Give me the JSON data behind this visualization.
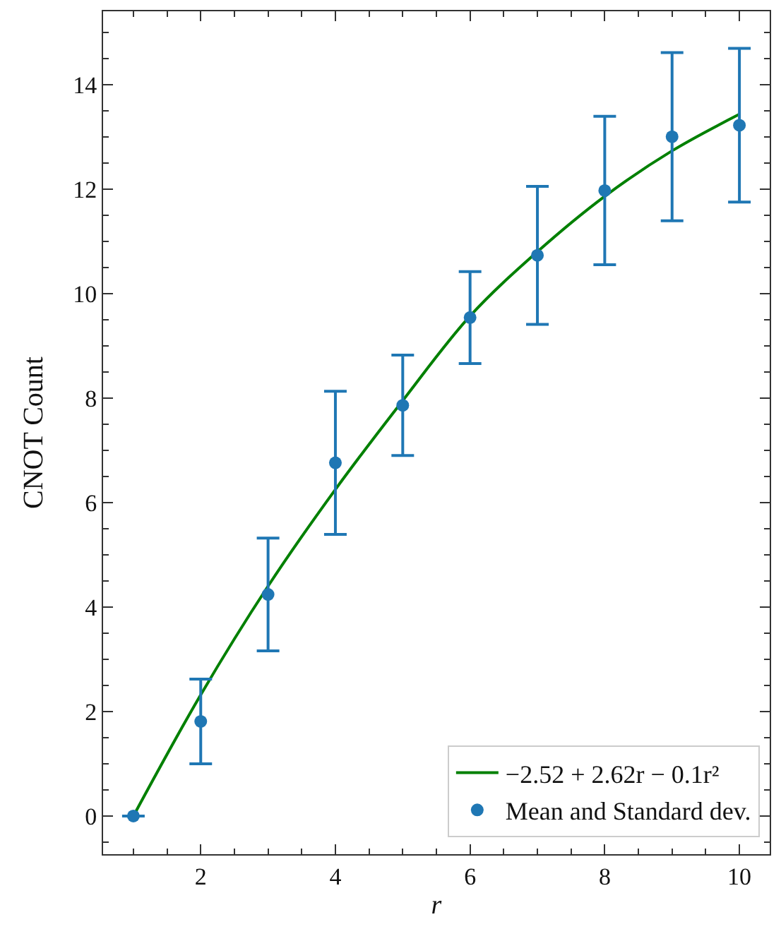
{
  "chart_data": {
    "type": "scatter",
    "xlabel": "r",
    "ylabel": "CNOT Count",
    "xlim": [
      0.55,
      10.45
    ],
    "xticks": [
      2,
      4,
      6,
      8,
      10
    ],
    "ylim": [
      -0.73,
      15.4
    ],
    "yticks": [
      0,
      2,
      4,
      6,
      8,
      10,
      12,
      14
    ],
    "grid": false,
    "legend": "bottom right",
    "series": [
      {
        "type": "line",
        "name": "−2.52 + 2.62r − 0.1r²",
        "color": "#008000",
        "line_style": "solid",
        "x": [
          1,
          2,
          3,
          4,
          5,
          6,
          7,
          8,
          9,
          10
        ],
        "values": [
          0.0,
          2.32,
          4.4,
          6.25,
          7.95,
          9.57,
          10.8,
          11.86,
          12.73,
          13.43
        ]
      },
      {
        "marker": "circle",
        "name": "Mean and Standard dev.",
        "color": "#1f77b4",
        "x": [
          1,
          2,
          3,
          4,
          5,
          6,
          7,
          8,
          9,
          10
        ],
        "values": [
          0.0,
          1.81,
          4.24,
          6.76,
          7.86,
          9.54,
          10.73,
          11.97,
          13.0,
          13.22
        ],
        "errors": [
          0,
          0.81,
          1.08,
          1.37,
          0.96,
          0.88,
          1.32,
          1.42,
          1.61,
          1.47
        ]
      }
    ]
  }
}
